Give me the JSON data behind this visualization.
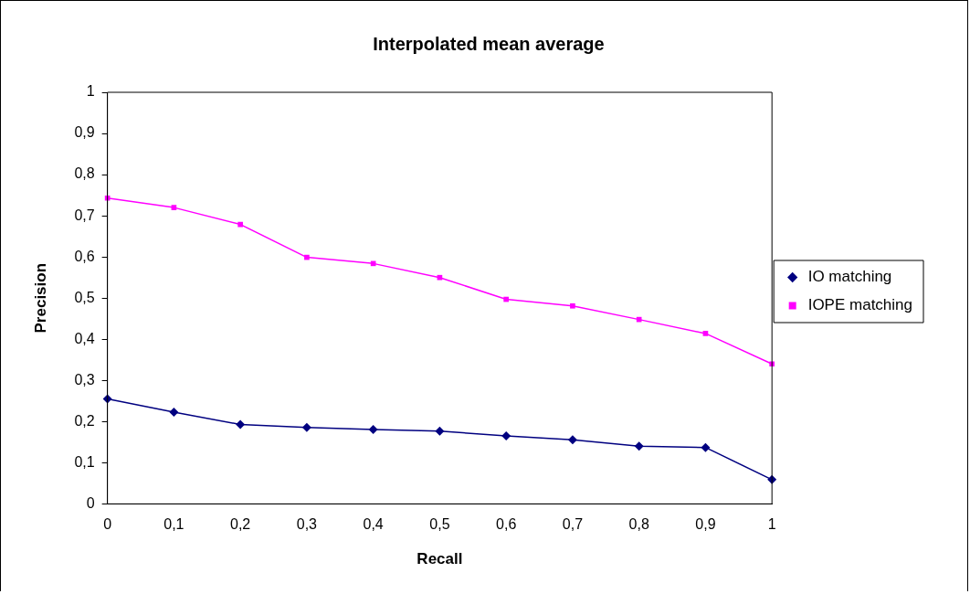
{
  "chart_data": {
    "type": "line",
    "title": "Interpolated mean average",
    "xlabel": "Recall",
    "ylabel": "Precision",
    "categories": [
      "0",
      "0,1",
      "0,2",
      "0,3",
      "0,4",
      "0,5",
      "0,6",
      "0,7",
      "0,8",
      "0,9",
      "1"
    ],
    "series": [
      {
        "name": "IO matching",
        "color": "#000080",
        "marker": "diamond",
        "values": [
          0.255,
          0.223,
          0.193,
          0.186,
          0.181,
          0.177,
          0.165,
          0.156,
          0.14,
          0.137,
          0.059
        ]
      },
      {
        "name": "IOPE matching",
        "color": "#ff00ff",
        "marker": "square",
        "values": [
          0.743,
          0.72,
          0.679,
          0.599,
          0.584,
          0.55,
          0.497,
          0.481,
          0.448,
          0.414,
          0.34
        ]
      }
    ],
    "ylim": [
      0,
      1
    ],
    "yticks": [
      0,
      {
        "value": 0.1,
        "label": "0,1"
      },
      {
        "value": 0.2,
        "label": "0,2"
      },
      {
        "value": 0.3,
        "label": "0,3"
      },
      {
        "value": 0.4,
        "label": "0,4"
      },
      {
        "value": 0.5,
        "label": "0,5"
      },
      {
        "value": 0.6,
        "label": "0,6"
      },
      {
        "value": 0.7,
        "label": "0,7"
      },
      {
        "value": 0.8,
        "label": "0,8"
      },
      {
        "value": 0.9,
        "label": "0,9"
      },
      1
    ],
    "grid": false,
    "legend": "right",
    "line_style": "solid"
  }
}
